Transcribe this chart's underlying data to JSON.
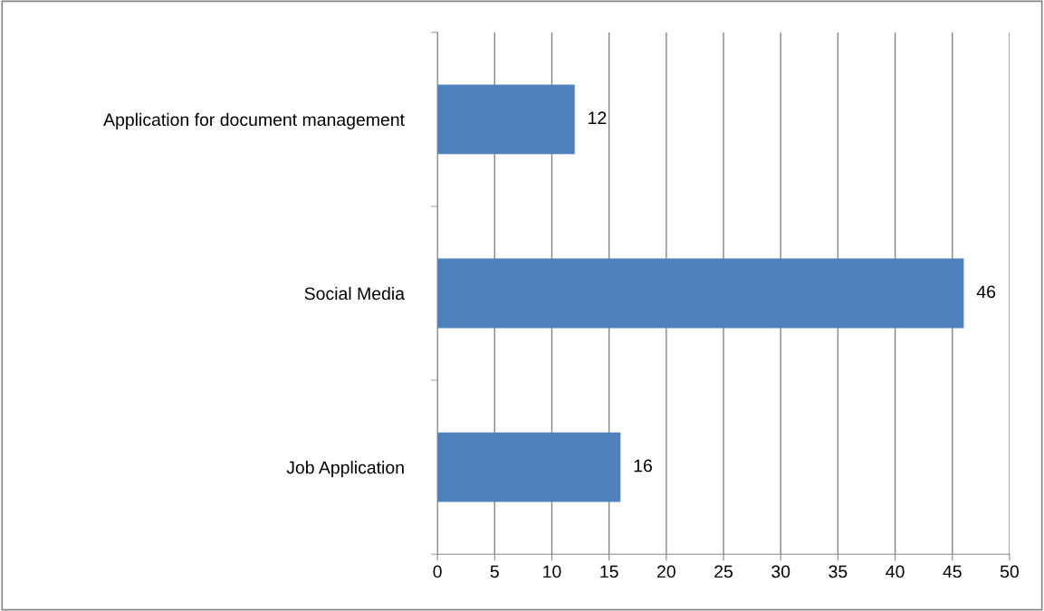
{
  "chart_data": {
    "type": "bar",
    "orientation": "horizontal",
    "categories": [
      "Application for document management",
      "Social Media",
      "Job Application"
    ],
    "values": [
      12,
      46,
      16
    ],
    "color": "#4f81bd",
    "xlim": [
      0,
      50
    ],
    "xticks": [
      0,
      5,
      10,
      15,
      20,
      25,
      30,
      35,
      40,
      45,
      50
    ],
    "grid": "x",
    "data_labels": true
  }
}
